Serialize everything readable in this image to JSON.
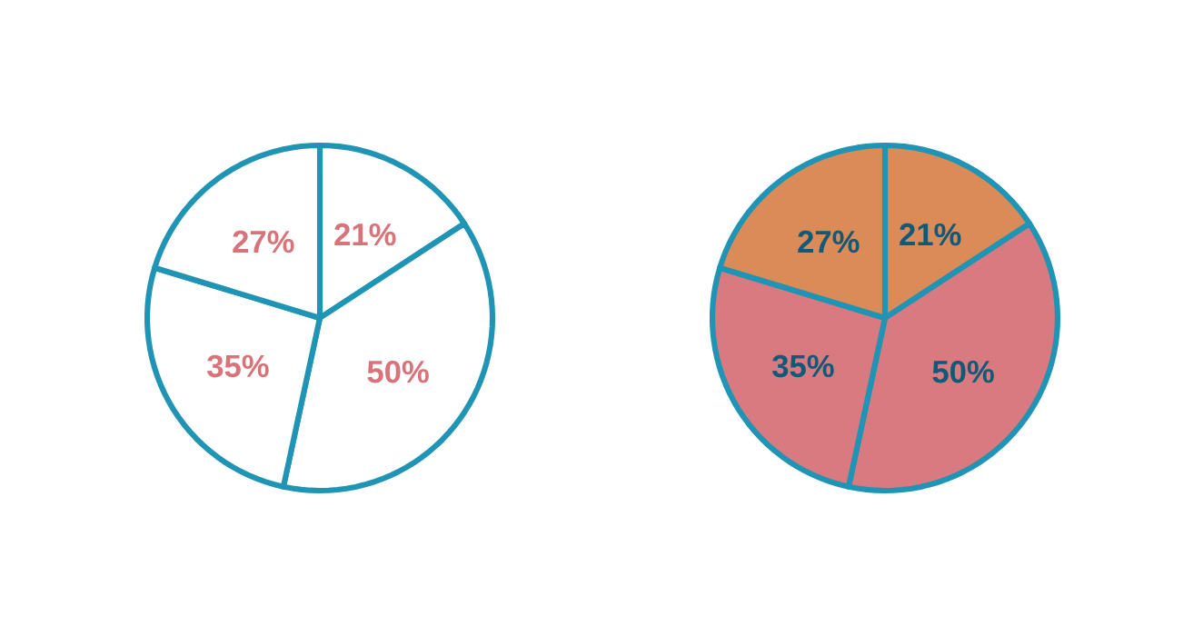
{
  "chart_data": [
    {
      "type": "pie",
      "categories": [
        null,
        null,
        null,
        null
      ],
      "values": [
        21,
        50,
        35,
        27
      ],
      "value_labels": [
        "21%",
        "50%",
        "35%",
        "27%"
      ],
      "colors": [
        "#ffffff",
        "#ffffff",
        "#ffffff",
        "#ffffff"
      ]
    },
    {
      "type": "pie",
      "categories": [
        null,
        null,
        null,
        null
      ],
      "values": [
        21,
        50,
        35,
        27
      ],
      "value_labels": [
        "21%",
        "50%",
        "35%",
        "27%"
      ],
      "colors": [
        "#db8b58",
        "#d97a80",
        "#d97a80",
        "#db8b58"
      ]
    }
  ]
}
